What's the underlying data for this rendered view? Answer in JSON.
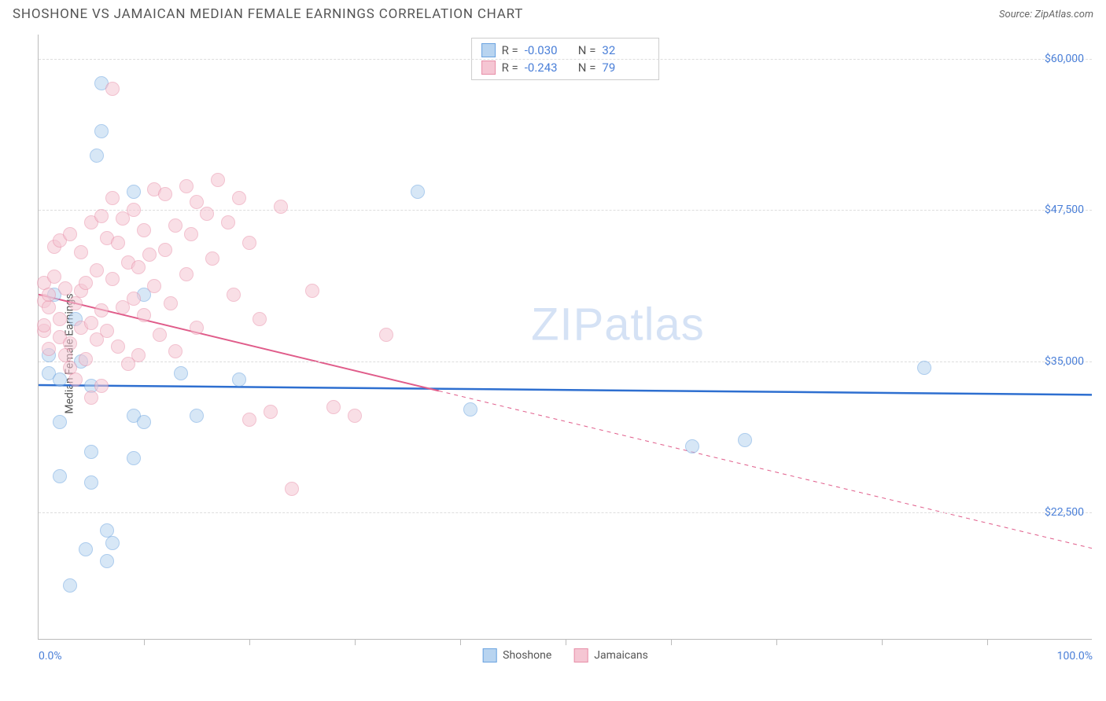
{
  "title": "SHOSHONE VS JAMAICAN MEDIAN FEMALE EARNINGS CORRELATION CHART",
  "source_label": "Source:",
  "source_name": "ZipAtlas.com",
  "ylabel": "Median Female Earnings",
  "watermark_a": "ZIP",
  "watermark_b": "atlas",
  "chart": {
    "type": "scatter",
    "xlim": [
      0,
      100
    ],
    "ylim": [
      12000,
      62000
    ],
    "x_axis_labels": [
      {
        "pos": 0,
        "text": "0.0%",
        "align": "left"
      },
      {
        "pos": 100,
        "text": "100.0%",
        "align": "right"
      }
    ],
    "x_ticks": [
      10,
      20,
      30,
      40,
      50,
      60,
      70,
      80,
      90
    ],
    "y_gridlines": [
      22500,
      35000,
      47500,
      60000
    ],
    "y_axis_labels": [
      {
        "pos": 22500,
        "text": "$22,500"
      },
      {
        "pos": 35000,
        "text": "$35,000"
      },
      {
        "pos": 47500,
        "text": "$47,500"
      },
      {
        "pos": 60000,
        "text": "$60,000"
      }
    ],
    "background_color": "#ffffff",
    "grid_color": "#dddddd",
    "point_radius": 9,
    "point_opacity": 0.55,
    "series": [
      {
        "name": "Shoshone",
        "color_fill": "#b8d4f0",
        "color_stroke": "#6aa3e0",
        "r": "-0.030",
        "n": "32",
        "trend": {
          "y_at_x0": 33000,
          "y_at_x100": 32200,
          "solid_until_x": 100,
          "color": "#2e6fd0",
          "width": 2.5
        },
        "points": [
          [
            1,
            35500
          ],
          [
            1,
            34000
          ],
          [
            1.5,
            40500
          ],
          [
            2,
            33500
          ],
          [
            2,
            30000
          ],
          [
            2,
            25500
          ],
          [
            3,
            16500
          ],
          [
            3.5,
            38500
          ],
          [
            4,
            35000
          ],
          [
            4.5,
            19500
          ],
          [
            5,
            27500
          ],
          [
            5,
            33000
          ],
          [
            5,
            25000
          ],
          [
            5.5,
            52000
          ],
          [
            6,
            58000
          ],
          [
            6,
            54000
          ],
          [
            6.5,
            21000
          ],
          [
            6.5,
            18500
          ],
          [
            9,
            27000
          ],
          [
            9,
            49000
          ],
          [
            9,
            30500
          ],
          [
            10,
            30000
          ],
          [
            10,
            40500
          ],
          [
            13.5,
            34000
          ],
          [
            15,
            30500
          ],
          [
            19,
            33500
          ],
          [
            36,
            49000
          ],
          [
            41,
            31000
          ],
          [
            62,
            28000
          ],
          [
            67,
            28500
          ],
          [
            84,
            34500
          ],
          [
            7,
            20000
          ]
        ]
      },
      {
        "name": "Jamaicans",
        "color_fill": "#f5c6d3",
        "color_stroke": "#e88fa8",
        "r": "-0.243",
        "n": "79",
        "trend": {
          "y_at_x0": 40500,
          "y_at_x100": 19500,
          "solid_until_x": 38,
          "color": "#e05c8a",
          "width": 2
        },
        "points": [
          [
            0.5,
            40000
          ],
          [
            0.5,
            41500
          ],
          [
            0.5,
            37500
          ],
          [
            0.5,
            38000
          ],
          [
            1,
            39500
          ],
          [
            1,
            40500
          ],
          [
            1,
            36000
          ],
          [
            1.5,
            44500
          ],
          [
            1.5,
            42000
          ],
          [
            2,
            45000
          ],
          [
            2,
            38500
          ],
          [
            2,
            37000
          ],
          [
            2.5,
            35500
          ],
          [
            2.5,
            41000
          ],
          [
            3,
            45500
          ],
          [
            3,
            34500
          ],
          [
            3,
            36500
          ],
          [
            3.5,
            39800
          ],
          [
            3.5,
            33500
          ],
          [
            4,
            44000
          ],
          [
            4,
            40800
          ],
          [
            4,
            37800
          ],
          [
            4.5,
            41500
          ],
          [
            4.5,
            35200
          ],
          [
            5,
            46500
          ],
          [
            5,
            38200
          ],
          [
            5,
            32000
          ],
          [
            5.5,
            42500
          ],
          [
            5.5,
            36800
          ],
          [
            6,
            47000
          ],
          [
            6,
            39200
          ],
          [
            6,
            33000
          ],
          [
            6.5,
            45200
          ],
          [
            6.5,
            37500
          ],
          [
            7,
            57500
          ],
          [
            7,
            48500
          ],
          [
            7,
            41800
          ],
          [
            7.5,
            44800
          ],
          [
            7.5,
            36200
          ],
          [
            8,
            46800
          ],
          [
            8,
            39500
          ],
          [
            8.5,
            43200
          ],
          [
            8.5,
            34800
          ],
          [
            9,
            47500
          ],
          [
            9,
            40200
          ],
          [
            9.5,
            42800
          ],
          [
            9.5,
            35500
          ],
          [
            10,
            45800
          ],
          [
            10,
            38800
          ],
          [
            10.5,
            43800
          ],
          [
            11,
            49200
          ],
          [
            11,
            41200
          ],
          [
            11.5,
            37200
          ],
          [
            12,
            48800
          ],
          [
            12,
            44200
          ],
          [
            12.5,
            39800
          ],
          [
            13,
            46200
          ],
          [
            13,
            35800
          ],
          [
            14,
            49500
          ],
          [
            14,
            42200
          ],
          [
            14.5,
            45500
          ],
          [
            15,
            48200
          ],
          [
            15,
            37800
          ],
          [
            16,
            47200
          ],
          [
            16.5,
            43500
          ],
          [
            17,
            50000
          ],
          [
            18,
            46500
          ],
          [
            18.5,
            40500
          ],
          [
            19,
            48500
          ],
          [
            20,
            30200
          ],
          [
            20,
            44800
          ],
          [
            21,
            38500
          ],
          [
            22,
            30800
          ],
          [
            23,
            47800
          ],
          [
            24,
            24500
          ],
          [
            26,
            40800
          ],
          [
            28,
            31200
          ],
          [
            30,
            30500
          ],
          [
            33,
            37200
          ]
        ]
      }
    ],
    "legend": [
      {
        "label": "Shoshone",
        "fill": "#b8d4f0",
        "stroke": "#6aa3e0"
      },
      {
        "label": "Jamaicans",
        "fill": "#f5c6d3",
        "stroke": "#e88fa8"
      }
    ]
  }
}
